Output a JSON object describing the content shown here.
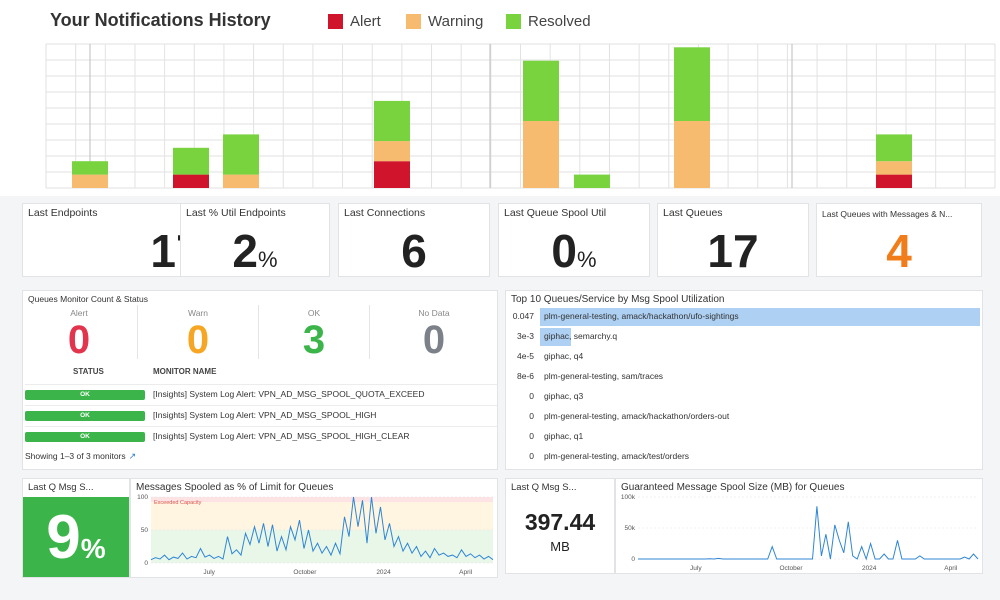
{
  "header": {
    "title": "Your Notifications History",
    "legend": [
      {
        "label": "Alert",
        "color": "#d0142c"
      },
      {
        "label": "Warning",
        "color": "#f7bb70"
      },
      {
        "label": "Resolved",
        "color": "#78d33f"
      }
    ]
  },
  "chart_data": [
    {
      "type": "bar",
      "stacked": true,
      "title": "Your Notifications History",
      "series": [
        {
          "name": "Alert",
          "color": "#d0142c",
          "values": [
            0,
            2,
            0,
            4,
            0,
            0,
            0,
            2
          ]
        },
        {
          "name": "Warning",
          "color": "#f7bb70",
          "values": [
            2,
            0,
            2,
            3,
            10,
            0,
            10,
            2
          ]
        },
        {
          "name": "Resolved",
          "color": "#78d33f",
          "values": [
            2,
            4,
            6,
            6,
            9,
            2,
            11,
            4
          ]
        }
      ],
      "grid": true
    },
    {
      "type": "line",
      "title": "Messages Spooled as % of Limit for Queues",
      "x_ticks": [
        "July",
        "October",
        "2024",
        "April"
      ],
      "y_ticks": [
        "0",
        "50",
        "100"
      ],
      "ylim": [
        0,
        100
      ],
      "band_label": "Exceeded Capacity",
      "values": [
        5,
        8,
        6,
        12,
        5,
        9,
        7,
        15,
        6,
        10,
        8,
        22,
        9,
        12,
        7,
        10,
        6,
        40,
        14,
        20,
        12,
        45,
        28,
        55,
        30,
        60,
        25,
        58,
        18,
        40,
        20,
        55,
        35,
        65,
        22,
        50,
        18,
        30,
        15,
        25,
        12,
        30,
        14,
        70,
        40,
        100,
        55,
        95,
        30,
        100,
        45,
        85,
        35,
        60,
        25,
        40,
        18,
        30,
        15,
        25,
        10,
        18,
        8,
        22,
        12,
        15,
        10,
        12,
        8,
        20,
        10,
        14,
        8,
        12,
        6,
        10,
        5
      ]
    },
    {
      "type": "line",
      "title": "Guaranteed Message Spool Size (MB) for Queues",
      "x_ticks": [
        "July",
        "October",
        "2024",
        "April"
      ],
      "y_ticks": [
        "0",
        "50k",
        "100k"
      ],
      "ylim": [
        0,
        100000
      ],
      "values": [
        0,
        0,
        0,
        0,
        0,
        0,
        0,
        0,
        0,
        0,
        0,
        0,
        0,
        0,
        0,
        0,
        500,
        0,
        1000,
        0,
        0,
        0,
        0,
        0,
        0,
        0,
        0,
        0,
        0,
        0,
        20000,
        0,
        0,
        0,
        0,
        0,
        0,
        0,
        0,
        0,
        85000,
        5000,
        40000,
        0,
        55000,
        30000,
        10000,
        60000,
        5000,
        0,
        20000,
        0,
        25000,
        0,
        0,
        8000,
        0,
        0,
        30000,
        0,
        0,
        0,
        0,
        5000,
        0,
        0,
        0,
        0,
        0,
        0,
        0,
        0,
        0,
        3000,
        0,
        8000,
        0
      ]
    }
  ],
  "stats": [
    {
      "title": "Last Endpoints",
      "value": "17",
      "unit": "",
      "color": "#222222"
    },
    {
      "title": "Last % Util Endpoints",
      "value": "2",
      "unit": "%",
      "color": "#222222"
    },
    {
      "title": "Last Connections",
      "value": "6",
      "unit": "",
      "color": "#222222"
    },
    {
      "title": "Last Queue Spool Util",
      "value": "0",
      "unit": "%",
      "color": "#222222"
    },
    {
      "title": "Last Queues",
      "value": "17",
      "unit": "",
      "color": "#222222"
    },
    {
      "title": "Last Queues with Messages & N...",
      "value": "4",
      "unit": "",
      "color": "#f07d19"
    }
  ],
  "queues_monitor": {
    "title": "Queues Monitor Count & Status",
    "counts": [
      {
        "label": "Alert",
        "value": "0",
        "color": "#e2344d"
      },
      {
        "label": "Warn",
        "value": "0",
        "color": "#f6a623"
      },
      {
        "label": "OK",
        "value": "3",
        "color": "#3bb54a"
      },
      {
        "label": "No Data",
        "value": "0",
        "color": "#7b8089"
      }
    ],
    "col_status": "STATUS",
    "col_name": "MONITOR NAME",
    "rows": [
      {
        "status": "OK",
        "name": "[Insights] System Log Alert: VPN_AD_MSG_SPOOL_QUOTA_EXCEED"
      },
      {
        "status": "OK",
        "name": "[Insights] System Log Alert: VPN_AD_MSG_SPOOL_HIGH"
      },
      {
        "status": "OK",
        "name": "[Insights] System Log Alert: VPN_AD_MSG_SPOOL_HIGH_CLEAR"
      }
    ],
    "showing": "Showing 1–3 of 3 monitors"
  },
  "top10": {
    "title": "Top 10 Queues/Service by Msg Spool Utilization",
    "rows": [
      {
        "value": "0.047",
        "label": "plm-general-testing, amack/hackathon/ufo-sightings",
        "fraction": 1.0
      },
      {
        "value": "3e-3",
        "label": "giphac, semarchy.q",
        "fraction": 0.07
      },
      {
        "value": "4e-5",
        "label": "giphac, q4",
        "fraction": 0
      },
      {
        "value": "8e-6",
        "label": "plm-general-testing, sam/traces",
        "fraction": 0
      },
      {
        "value": "0",
        "label": "giphac, q3",
        "fraction": 0
      },
      {
        "value": "0",
        "label": "plm-general-testing, amack/hackathon/orders-out",
        "fraction": 0
      },
      {
        "value": "0",
        "label": "giphac, q1",
        "fraction": 0
      },
      {
        "value": "0",
        "label": "plm-general-testing, amack/test/orders",
        "fraction": 0
      }
    ]
  },
  "bottom_left": {
    "stat_title": "Last Q Msg S...",
    "stat_value": "9",
    "stat_unit": "%",
    "stat_color": "#3bb54a",
    "chart_title": "Messages Spooled as % of Limit for Queues"
  },
  "bottom_right": {
    "stat_title": "Last Q Msg S...",
    "stat_value": "397.44",
    "stat_unit": "MB",
    "chart_title": "Guaranteed Message Spool Size (MB) for Queues"
  }
}
